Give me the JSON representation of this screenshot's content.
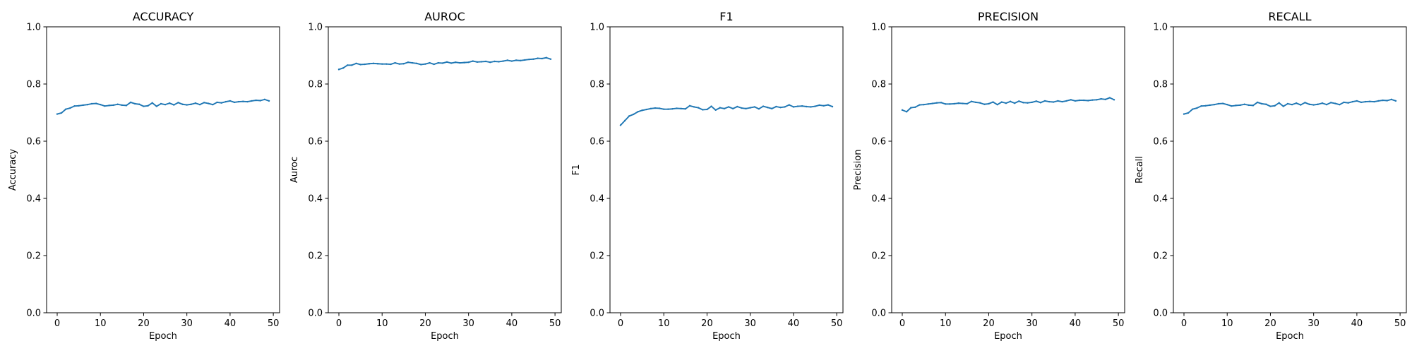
{
  "chart_data": [
    {
      "type": "line",
      "title": "ACCURACY",
      "xlabel": "Epoch",
      "ylabel": "Accuracy",
      "xlim": [
        -2.45,
        51.45
      ],
      "ylim": [
        0.0,
        1.0
      ],
      "xticks": [
        0,
        10,
        20,
        30,
        40,
        50
      ],
      "yticks": [
        0.0,
        0.2,
        0.4,
        0.6,
        0.8,
        1.0
      ],
      "xtick_labels": [
        "0",
        "10",
        "20",
        "30",
        "40",
        "50"
      ],
      "ytick_labels": [
        "0.0",
        "0.2",
        "0.4",
        "0.6",
        "0.8",
        "1.0"
      ],
      "grid": false,
      "color": "#1f77b4",
      "x": [
        0,
        1,
        2,
        3,
        4,
        5,
        6,
        7,
        8,
        9,
        10,
        11,
        12,
        13,
        14,
        15,
        16,
        17,
        18,
        19,
        20,
        21,
        22,
        23,
        24,
        25,
        26,
        27,
        28,
        29,
        30,
        31,
        32,
        33,
        34,
        35,
        36,
        37,
        38,
        39,
        40,
        41,
        42,
        43,
        44,
        45,
        46,
        47,
        48,
        49
      ],
      "y": [
        0.695,
        0.699,
        0.712,
        0.716,
        0.723,
        0.724,
        0.726,
        0.728,
        0.731,
        0.732,
        0.728,
        0.723,
        0.725,
        0.726,
        0.729,
        0.726,
        0.725,
        0.736,
        0.731,
        0.729,
        0.722,
        0.724,
        0.734,
        0.722,
        0.731,
        0.728,
        0.733,
        0.727,
        0.735,
        0.729,
        0.727,
        0.729,
        0.733,
        0.728,
        0.735,
        0.732,
        0.728,
        0.736,
        0.734,
        0.738,
        0.741,
        0.736,
        0.738,
        0.739,
        0.738,
        0.741,
        0.743,
        0.742,
        0.746,
        0.741
      ]
    },
    {
      "type": "line",
      "title": "AUROC",
      "xlabel": "Epoch",
      "ylabel": "Auroc",
      "xlim": [
        -2.45,
        51.45
      ],
      "ylim": [
        0.0,
        1.0
      ],
      "xticks": [
        0,
        10,
        20,
        30,
        40,
        50
      ],
      "yticks": [
        0.0,
        0.2,
        0.4,
        0.6,
        0.8,
        1.0
      ],
      "xtick_labels": [
        "0",
        "10",
        "20",
        "30",
        "40",
        "50"
      ],
      "ytick_labels": [
        "0.0",
        "0.2",
        "0.4",
        "0.6",
        "0.8",
        "1.0"
      ],
      "grid": false,
      "color": "#1f77b4",
      "x": [
        0,
        1,
        2,
        3,
        4,
        5,
        6,
        7,
        8,
        9,
        10,
        11,
        12,
        13,
        14,
        15,
        16,
        17,
        18,
        19,
        20,
        21,
        22,
        23,
        24,
        25,
        26,
        27,
        28,
        29,
        30,
        31,
        32,
        33,
        34,
        35,
        36,
        37,
        38,
        39,
        40,
        41,
        42,
        43,
        44,
        45,
        46,
        47,
        48,
        49
      ],
      "y": [
        0.851,
        0.856,
        0.866,
        0.866,
        0.872,
        0.868,
        0.869,
        0.871,
        0.872,
        0.871,
        0.87,
        0.87,
        0.869,
        0.874,
        0.87,
        0.871,
        0.876,
        0.874,
        0.872,
        0.868,
        0.87,
        0.874,
        0.869,
        0.874,
        0.873,
        0.877,
        0.873,
        0.876,
        0.874,
        0.875,
        0.876,
        0.88,
        0.877,
        0.878,
        0.879,
        0.876,
        0.879,
        0.878,
        0.88,
        0.883,
        0.88,
        0.883,
        0.882,
        0.884,
        0.886,
        0.887,
        0.89,
        0.889,
        0.892,
        0.887
      ]
    },
    {
      "type": "line",
      "title": "F1",
      "xlabel": "Epoch",
      "ylabel": "F1",
      "xlim": [
        -2.45,
        51.45
      ],
      "ylim": [
        0.0,
        1.0
      ],
      "xticks": [
        0,
        10,
        20,
        30,
        40,
        50
      ],
      "yticks": [
        0.0,
        0.2,
        0.4,
        0.6,
        0.8,
        1.0
      ],
      "xtick_labels": [
        "0",
        "10",
        "20",
        "30",
        "40",
        "50"
      ],
      "ytick_labels": [
        "0.0",
        "0.2",
        "0.4",
        "0.6",
        "0.8",
        "1.0"
      ],
      "grid": false,
      "color": "#1f77b4",
      "x": [
        0,
        1,
        2,
        3,
        4,
        5,
        6,
        7,
        8,
        9,
        10,
        11,
        12,
        13,
        14,
        15,
        16,
        17,
        18,
        19,
        20,
        21,
        22,
        23,
        24,
        25,
        26,
        27,
        28,
        29,
        30,
        31,
        32,
        33,
        34,
        35,
        36,
        37,
        38,
        39,
        40,
        41,
        42,
        43,
        44,
        45,
        46,
        47,
        48,
        49
      ],
      "y": [
        0.656,
        0.672,
        0.688,
        0.694,
        0.703,
        0.708,
        0.711,
        0.714,
        0.716,
        0.715,
        0.712,
        0.712,
        0.713,
        0.715,
        0.714,
        0.713,
        0.724,
        0.72,
        0.717,
        0.71,
        0.711,
        0.722,
        0.709,
        0.717,
        0.714,
        0.72,
        0.714,
        0.721,
        0.716,
        0.714,
        0.717,
        0.72,
        0.713,
        0.722,
        0.718,
        0.714,
        0.721,
        0.718,
        0.72,
        0.727,
        0.72,
        0.722,
        0.723,
        0.721,
        0.72,
        0.722,
        0.726,
        0.724,
        0.727,
        0.721
      ]
    },
    {
      "type": "line",
      "title": "PRECISION",
      "xlabel": "Epoch",
      "ylabel": "Precision",
      "xlim": [
        -2.45,
        51.45
      ],
      "ylim": [
        0.0,
        1.0
      ],
      "xticks": [
        0,
        10,
        20,
        30,
        40,
        50
      ],
      "yticks": [
        0.0,
        0.2,
        0.4,
        0.6,
        0.8,
        1.0
      ],
      "xtick_labels": [
        "0",
        "10",
        "20",
        "30",
        "40",
        "50"
      ],
      "ytick_labels": [
        "0.0",
        "0.2",
        "0.4",
        "0.6",
        "0.8",
        "1.0"
      ],
      "grid": false,
      "color": "#1f77b4",
      "x": [
        0,
        1,
        2,
        3,
        4,
        5,
        6,
        7,
        8,
        9,
        10,
        11,
        12,
        13,
        14,
        15,
        16,
        17,
        18,
        19,
        20,
        21,
        22,
        23,
        24,
        25,
        26,
        27,
        28,
        29,
        30,
        31,
        32,
        33,
        34,
        35,
        36,
        37,
        38,
        39,
        40,
        41,
        42,
        43,
        44,
        45,
        46,
        47,
        48,
        49
      ],
      "y": [
        0.709,
        0.703,
        0.717,
        0.719,
        0.727,
        0.728,
        0.73,
        0.732,
        0.734,
        0.735,
        0.73,
        0.73,
        0.731,
        0.733,
        0.732,
        0.731,
        0.739,
        0.736,
        0.734,
        0.729,
        0.731,
        0.737,
        0.728,
        0.737,
        0.733,
        0.739,
        0.733,
        0.74,
        0.735,
        0.734,
        0.736,
        0.74,
        0.735,
        0.741,
        0.738,
        0.737,
        0.741,
        0.738,
        0.741,
        0.745,
        0.741,
        0.743,
        0.743,
        0.742,
        0.744,
        0.745,
        0.748,
        0.746,
        0.752,
        0.745
      ]
    },
    {
      "type": "line",
      "title": "RECALL",
      "xlabel": "Epoch",
      "ylabel": "Recall",
      "xlim": [
        -2.45,
        51.45
      ],
      "ylim": [
        0.0,
        1.0
      ],
      "xticks": [
        0,
        10,
        20,
        30,
        40,
        50
      ],
      "yticks": [
        0.0,
        0.2,
        0.4,
        0.6,
        0.8,
        1.0
      ],
      "xtick_labels": [
        "0",
        "10",
        "20",
        "30",
        "40",
        "50"
      ],
      "ytick_labels": [
        "0.0",
        "0.2",
        "0.4",
        "0.6",
        "0.8",
        "1.0"
      ],
      "grid": false,
      "color": "#1f77b4",
      "x": [
        0,
        1,
        2,
        3,
        4,
        5,
        6,
        7,
        8,
        9,
        10,
        11,
        12,
        13,
        14,
        15,
        16,
        17,
        18,
        19,
        20,
        21,
        22,
        23,
        24,
        25,
        26,
        27,
        28,
        29,
        30,
        31,
        32,
        33,
        34,
        35,
        36,
        37,
        38,
        39,
        40,
        41,
        42,
        43,
        44,
        45,
        46,
        47,
        48,
        49
      ],
      "y": [
        0.695,
        0.699,
        0.712,
        0.716,
        0.723,
        0.724,
        0.726,
        0.728,
        0.731,
        0.732,
        0.728,
        0.723,
        0.725,
        0.726,
        0.729,
        0.726,
        0.725,
        0.736,
        0.731,
        0.729,
        0.722,
        0.724,
        0.734,
        0.722,
        0.731,
        0.728,
        0.733,
        0.727,
        0.735,
        0.729,
        0.727,
        0.729,
        0.733,
        0.728,
        0.735,
        0.732,
        0.728,
        0.736,
        0.734,
        0.738,
        0.741,
        0.736,
        0.738,
        0.739,
        0.738,
        0.741,
        0.743,
        0.742,
        0.746,
        0.741
      ]
    }
  ]
}
